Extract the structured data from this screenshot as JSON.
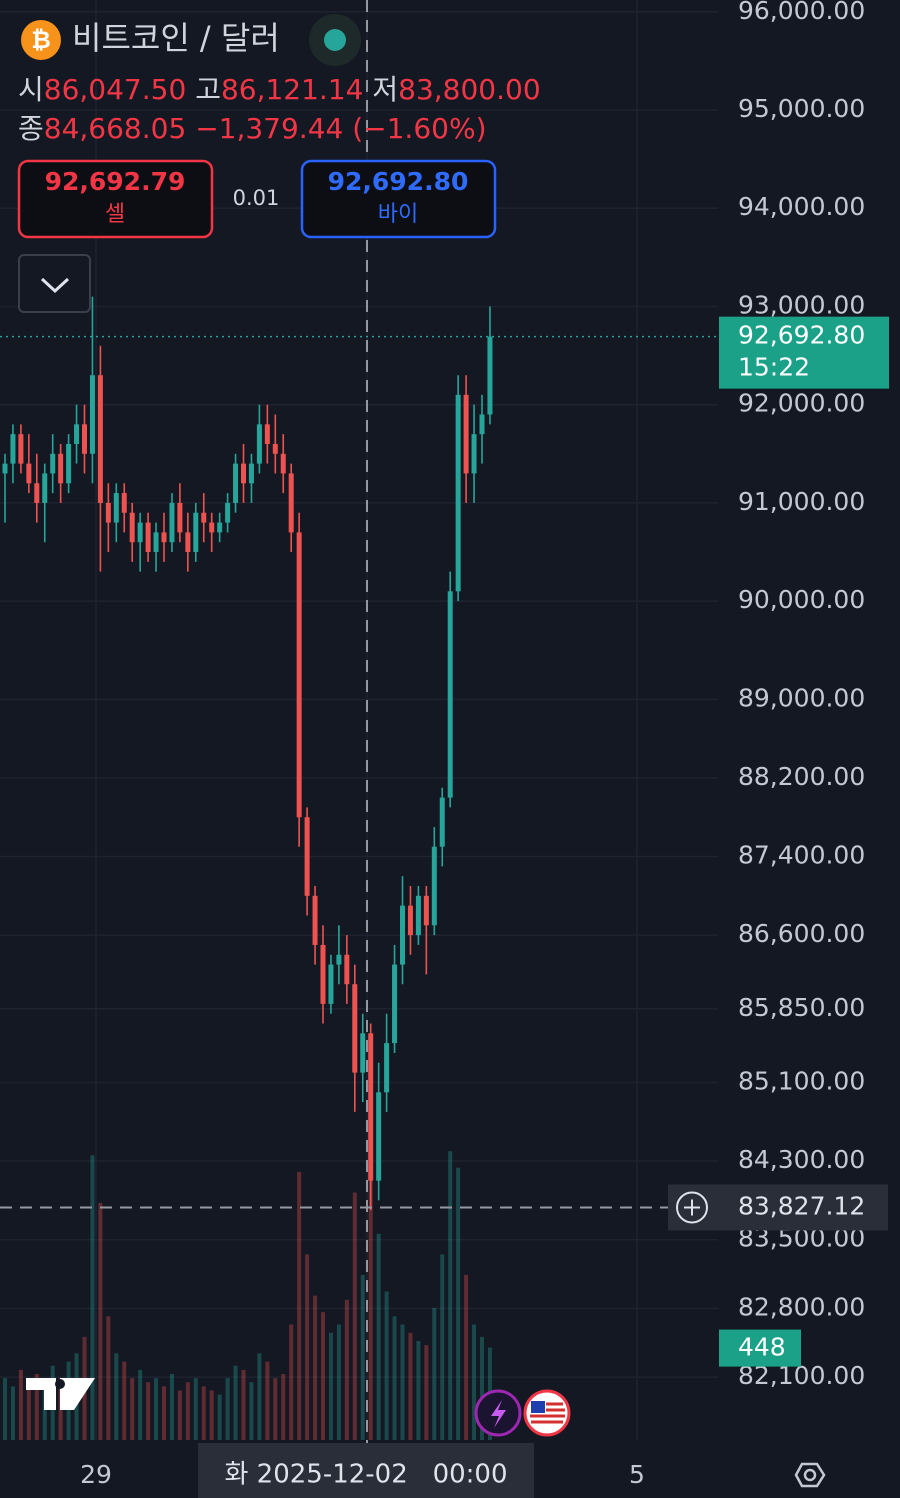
{
  "chart_data": {
    "type": "candlestick",
    "title": "비트코인 / 달러",
    "ohlc_header": {
      "open_label": "시",
      "open": "86,047.50",
      "high_label": "고",
      "high": "86,121.14",
      "low_label": "저",
      "low": "83,800.00",
      "close_label": "종",
      "close": "84,668.05",
      "change": "−1,379.44 (−1.60%)"
    },
    "open": [
      91300,
      91400,
      91700,
      91400,
      91200,
      91000,
      91300,
      91500,
      91200,
      91600,
      91800,
      91500,
      92300,
      91000,
      90800,
      91100,
      90900,
      90600,
      90800,
      90500,
      90700,
      90600,
      91000,
      90700,
      90500,
      90900,
      90800,
      90700,
      90800,
      91000,
      91400,
      91200,
      91400,
      91800,
      91600,
      91500,
      91300,
      90700,
      87800,
      87000,
      86500,
      85900,
      86300,
      86400,
      86100,
      85200,
      85600,
      84100,
      85000,
      85500,
      86300,
      86900,
      86600,
      87000,
      86700,
      87500,
      88000,
      90100,
      92100,
      91300,
      91700,
      91900
    ],
    "high": [
      91500,
      91800,
      91800,
      91700,
      91500,
      91400,
      91700,
      91600,
      91700,
      92000,
      92000,
      93100,
      92600,
      91200,
      91200,
      91200,
      91000,
      90900,
      90900,
      90800,
      90900,
      91100,
      91200,
      90900,
      91000,
      91100,
      90900,
      90900,
      91100,
      91500,
      91600,
      91500,
      92000,
      92000,
      91900,
      91700,
      91400,
      90900,
      87900,
      87100,
      86700,
      86400,
      86700,
      86600,
      86300,
      85800,
      85700,
      85300,
      85800,
      86500,
      87200,
      87100,
      87100,
      87100,
      87700,
      88100,
      90300,
      92300,
      92300,
      92000,
      92100,
      93000
    ],
    "low": [
      90800,
      91200,
      91300,
      91100,
      90800,
      90600,
      91100,
      91000,
      91100,
      91400,
      91300,
      91200,
      90300,
      90500,
      90600,
      90700,
      90400,
      90300,
      90400,
      90300,
      90400,
      90500,
      90600,
      90300,
      90400,
      90600,
      90500,
      90600,
      90700,
      90900,
      91000,
      91000,
      91300,
      91400,
      91300,
      91100,
      90500,
      87500,
      86800,
      86300,
      85700,
      85800,
      86100,
      85900,
      84800,
      84900,
      83800,
      83900,
      84800,
      85400,
      86100,
      86400,
      86500,
      86200,
      86600,
      87300,
      87900,
      90000,
      91000,
      91000,
      91400,
      91800
    ],
    "close": [
      91400,
      91700,
      91400,
      91200,
      91000,
      91300,
      91500,
      91200,
      91600,
      91800,
      91500,
      92300,
      91000,
      90800,
      91100,
      90900,
      90600,
      90800,
      90500,
      90700,
      90600,
      91000,
      90700,
      90500,
      90900,
      90800,
      90700,
      90800,
      91000,
      91400,
      91200,
      91400,
      91800,
      91600,
      91500,
      91300,
      90700,
      87800,
      87000,
      86500,
      85900,
      86300,
      86400,
      86100,
      85200,
      85600,
      84100,
      85000,
      85500,
      86300,
      86900,
      86600,
      87000,
      86700,
      87500,
      88000,
      90100,
      92100,
      91300,
      91700,
      91900,
      92692.8
    ],
    "volume": [
      300,
      260,
      340,
      280,
      320,
      250,
      360,
      300,
      380,
      420,
      500,
      1380,
      1150,
      600,
      420,
      380,
      300,
      340,
      280,
      300,
      260,
      320,
      240,
      280,
      300,
      260,
      240,
      220,
      300,
      360,
      340,
      280,
      420,
      380,
      300,
      320,
      560,
      1300,
      900,
      700,
      620,
      520,
      560,
      680,
      1200,
      800,
      1500,
      1000,
      720,
      600,
      560,
      520,
      480,
      460,
      640,
      900,
      1400,
      1320,
      800,
      560,
      500,
      448
    ],
    "up_color": "#26a69a",
    "down_color": "#ef5350",
    "ylim": [
      81460,
      96120
    ],
    "yticks": [
      {
        "value": 96000,
        "label": "96,000.00"
      },
      {
        "value": 95000,
        "label": "95,000.00"
      },
      {
        "value": 94000,
        "label": "94,000.00"
      },
      {
        "value": 93000,
        "label": "93,000.00"
      },
      {
        "value": 92000,
        "label": "92,000.00"
      },
      {
        "value": 91000,
        "label": "91,000.00"
      },
      {
        "value": 90000,
        "label": "90,000.00"
      },
      {
        "value": 89000,
        "label": "89,000.00"
      },
      {
        "value": 88200,
        "label": "88,200.00"
      },
      {
        "value": 87400,
        "label": "87,400.00"
      },
      {
        "value": 86600,
        "label": "86,600.00"
      },
      {
        "value": 85850,
        "label": "85,850.00"
      },
      {
        "value": 85100,
        "label": "85,100.00"
      },
      {
        "value": 84300,
        "label": "84,300.00"
      },
      {
        "value": 83500,
        "label": "83,500.00"
      },
      {
        "value": 82800,
        "label": "82,800.00"
      },
      {
        "value": 82100,
        "label": "82,100.00"
      }
    ],
    "y2lim": [
      0,
      1600
    ],
    "grid": true,
    "last_price": {
      "value": 92692.8,
      "label": "92,692.80",
      "countdown": "15:22"
    },
    "crosshair": {
      "value": 83827.12,
      "label": "83,827.12",
      "time_label": "화 2025-12-02   00:00"
    },
    "x_labels": [
      "29",
      "5"
    ]
  },
  "trade": {
    "sell_price": "92,692.79",
    "sell_label": "셀",
    "spread": "0.01",
    "buy_price": "92,692.80",
    "buy_label": "바이"
  }
}
